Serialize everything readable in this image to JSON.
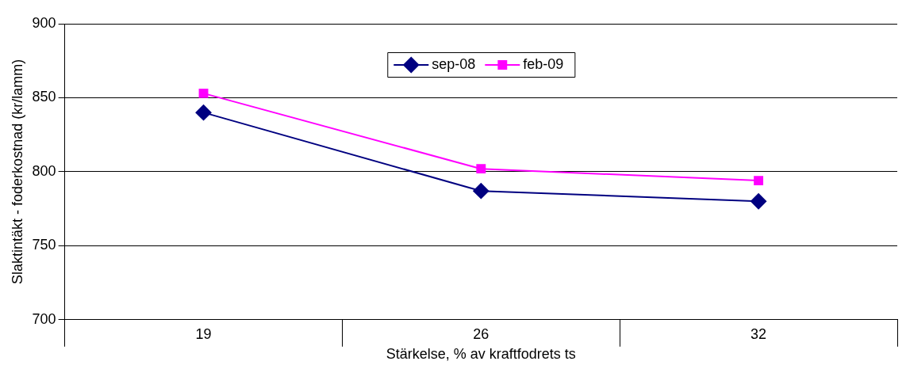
{
  "chart_data": {
    "type": "line",
    "xlabel": "Stärkelse, % av kraftfodrets ts",
    "ylabel": "Slaktintäkt - foderkostnad (kr/lamm)",
    "categories": [
      "19",
      "26",
      "32"
    ],
    "series": [
      {
        "name": "sep-08",
        "color": "#000080",
        "marker": "diamond",
        "values": [
          840,
          787,
          780
        ]
      },
      {
        "name": "feb-09",
        "color": "#ff00ff",
        "marker": "square",
        "values": [
          853,
          802,
          794
        ]
      }
    ],
    "ylim": [
      700,
      900
    ],
    "yticks": [
      700,
      750,
      800,
      850,
      900
    ],
    "grid": "y",
    "legend": "top",
    "line_style": "solid"
  }
}
